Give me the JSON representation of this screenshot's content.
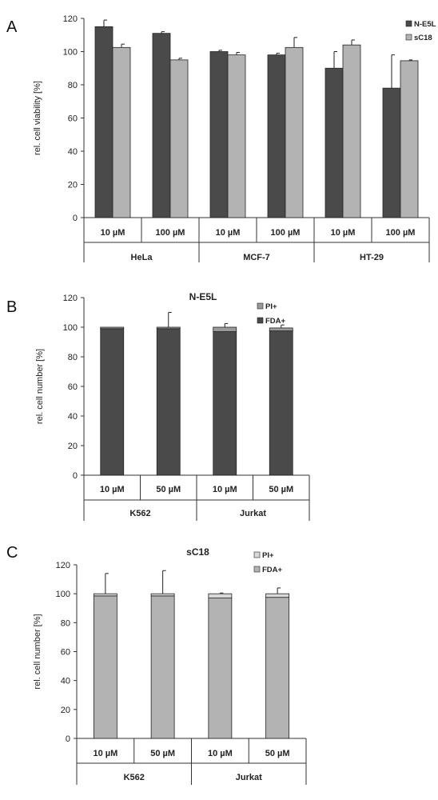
{
  "colors": {
    "dark": "#4a4a4a",
    "light": "#b3b3b3",
    "grey_mid": "#9a9a9a",
    "axis": "#333333"
  },
  "chart_data": [
    {
      "panel_label": "A",
      "type": "bar",
      "title": "",
      "ylabel": "rel. cell viability [%]",
      "ylim": [
        0,
        120
      ],
      "yticks": [
        0,
        20,
        40,
        60,
        80,
        100,
        120
      ],
      "categories": [
        "10 µM",
        "100 µM",
        "10 µM",
        "100 µM",
        "10 µM",
        "100 µM"
      ],
      "groups": [
        {
          "label": "HeLa",
          "span": 2
        },
        {
          "label": "MCF-7",
          "span": 2
        },
        {
          "label": "HT-29",
          "span": 2
        }
      ],
      "legend_position": "top-right",
      "series": [
        {
          "name": "N-E5L",
          "color": "#4a4a4a",
          "values": [
            115,
            111,
            100,
            98,
            90,
            78
          ],
          "errors": [
            4,
            1,
            0.8,
            1,
            10,
            20
          ]
        },
        {
          "name": "sC18",
          "color": "#b3b3b3",
          "values": [
            102.5,
            95,
            98,
            102.5,
            104,
            94.5
          ],
          "errors": [
            2,
            1,
            1.5,
            6,
            3,
            0.5
          ]
        }
      ]
    },
    {
      "panel_label": "B",
      "type": "bar",
      "stacked": true,
      "title": "N-E5L",
      "ylabel": "rel. cell number [%]",
      "ylim": [
        0,
        120
      ],
      "yticks": [
        0,
        20,
        40,
        60,
        80,
        100,
        120
      ],
      "categories": [
        "10 µM",
        "50 µM",
        "10 µM",
        "50 µM"
      ],
      "groups": [
        {
          "label": "K562",
          "span": 2
        },
        {
          "label": "Jurkat",
          "span": 2
        }
      ],
      "legend_position": "top-right",
      "series": [
        {
          "name": "FDA+",
          "color": "#4a4a4a",
          "values": [
            99,
            99,
            97,
            97.5
          ]
        },
        {
          "name": "PI+",
          "color": "#9a9a9a",
          "values": [
            1,
            1,
            3,
            2
          ]
        }
      ],
      "errors": [
        0,
        10,
        2.5,
        2
      ]
    },
    {
      "panel_label": "C",
      "type": "bar",
      "stacked": true,
      "title": "sC18",
      "ylabel": "rel. cell number [%]",
      "ylim": [
        0,
        120
      ],
      "yticks": [
        0,
        20,
        40,
        60,
        80,
        100,
        120
      ],
      "categories": [
        "10 µM",
        "50 µM",
        "10 µM",
        "50 µM"
      ],
      "groups": [
        {
          "label": "K562",
          "span": 2
        },
        {
          "label": "Jurkat",
          "span": 2
        }
      ],
      "legend_position": "top-right",
      "series": [
        {
          "name": "FDA+",
          "color": "#b3b3b3",
          "values": [
            98.5,
            98.5,
            97,
            97.5
          ]
        },
        {
          "name": "PI+",
          "color": "#d8d8d8",
          "values": [
            1.5,
            1.5,
            3,
            2.5
          ]
        }
      ],
      "errors": [
        14,
        16,
        0.5,
        4
      ]
    }
  ]
}
